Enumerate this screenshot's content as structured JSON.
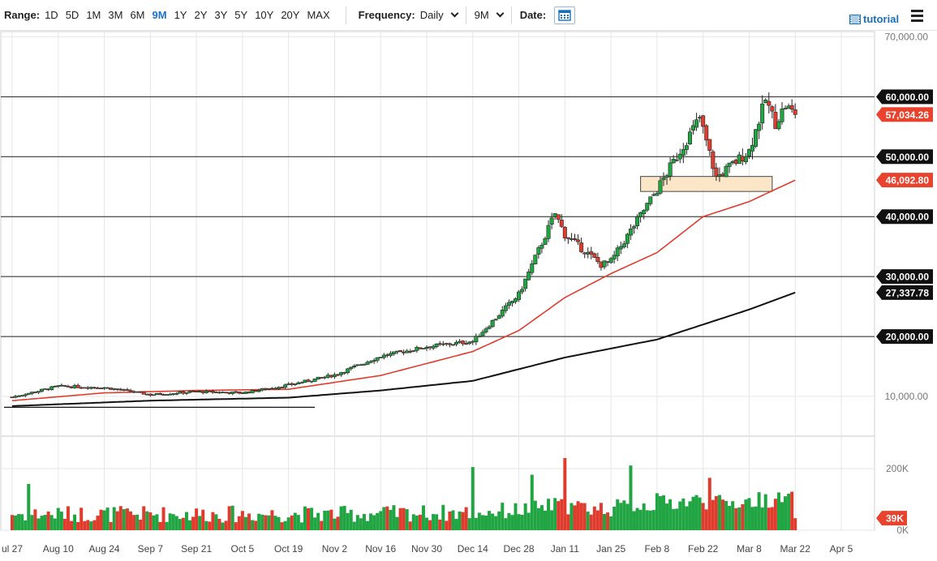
{
  "toolbar": {
    "range_label": "Range:",
    "ranges": [
      "1D",
      "5D",
      "1M",
      "3M",
      "6M",
      "9M",
      "1Y",
      "2Y",
      "3Y",
      "5Y",
      "10Y",
      "20Y",
      "MAX"
    ],
    "active_range": "9M",
    "frequency_label": "Frequency:",
    "frequency_value": "Daily",
    "period_value": "9M",
    "date_label": "Date:",
    "tutorial_label": "tutorial"
  },
  "colors": {
    "up": "#21a442",
    "down": "#e03c2e",
    "ma50": "#e03c2e",
    "ma200": "#111111",
    "tag_dark": "#111111",
    "tag_red": "#e8432f",
    "zone_fill": "#fbe7c8",
    "zone_stroke": "#444444"
  },
  "chart_data": {
    "type": "candlestick",
    "title": "",
    "y_axis": {
      "ticks": [
        "70,000.00",
        "60,000.00",
        "50,000.00",
        "40,000.00",
        "30,000.00",
        "20,000.00",
        "10,000.00"
      ],
      "values": [
        70000,
        60000,
        50000,
        40000,
        30000,
        20000,
        10000
      ],
      "ylim": [
        5000,
        71000
      ]
    },
    "x_axis": {
      "ticks": [
        "Jul 27",
        "Aug 10",
        "Aug 24",
        "Sep 7",
        "Sep 21",
        "Oct 5",
        "Oct 19",
        "Nov 2",
        "Nov 16",
        "Nov 30",
        "Dec 14",
        "Dec 28",
        "Jan 11",
        "Jan 25",
        "Feb 8",
        "Feb 22",
        "Mar 8",
        "Mar 22",
        "Apr 5"
      ],
      "tick_label_shown_first": "ul 27"
    },
    "horizontal_levels": [
      60000,
      50000,
      40000,
      30000,
      20000
    ],
    "price_tags": [
      {
        "label": "60,000.00",
        "value": 60000,
        "style": "dark"
      },
      {
        "label": "57,034.26",
        "value": 57034.26,
        "style": "red"
      },
      {
        "label": "50,000.00",
        "value": 50000,
        "style": "dark"
      },
      {
        "label": "46,092.80",
        "value": 46092.8,
        "style": "red"
      },
      {
        "label": "40,000.00",
        "value": 40000,
        "style": "dark"
      },
      {
        "label": "30,000.00",
        "value": 30000,
        "style": "dark"
      },
      {
        "label": "27,337.78",
        "value": 27337.78,
        "style": "dark"
      },
      {
        "label": "20,000.00",
        "value": 20000,
        "style": "dark"
      }
    ],
    "support_zone": {
      "from_date": "Feb 3",
      "to_date": "Mar 15",
      "low": 44200,
      "high": 46700
    },
    "trendline": {
      "from_date": "Jul 27",
      "to_date": "Oct 27",
      "value": 8200
    },
    "price_anchors": [
      [
        "Jul 27",
        9900
      ],
      [
        "Aug 10",
        11700
      ],
      [
        "Aug 24",
        11500
      ],
      [
        "Sep 7",
        10300
      ],
      [
        "Sep 21",
        10800
      ],
      [
        "Oct 5",
        10600
      ],
      [
        "Oct 19",
        11900
      ],
      [
        "Nov 2",
        13600
      ],
      [
        "Nov 16",
        16700
      ],
      [
        "Nov 30",
        18300
      ],
      [
        "Dec 14",
        19200
      ],
      [
        "Dec 28",
        27000
      ],
      [
        "Jan 8",
        40500
      ],
      [
        "Jan 11",
        37000
      ],
      [
        "Jan 22",
        32000
      ],
      [
        "Jan 25",
        32500
      ],
      [
        "Feb 8",
        44500
      ],
      [
        "Feb 21",
        56500
      ],
      [
        "Feb 26",
        46500
      ],
      [
        "Mar 8",
        51000
      ],
      [
        "Mar 13",
        59500
      ],
      [
        "Mar 16",
        55600
      ],
      [
        "Mar 19",
        58500
      ],
      [
        "Mar 22",
        57034.26
      ]
    ],
    "ma50_anchors": [
      [
        "Jul 27",
        9300
      ],
      [
        "Aug 24",
        10600
      ],
      [
        "Sep 21",
        11000
      ],
      [
        "Oct 19",
        11200
      ],
      [
        "Nov 16",
        13500
      ],
      [
        "Dec 14",
        17500
      ],
      [
        "Dec 28",
        21000
      ],
      [
        "Jan 11",
        26500
      ],
      [
        "Jan 25",
        30500
      ],
      [
        "Feb 8",
        34000
      ],
      [
        "Feb 22",
        40000
      ],
      [
        "Mar 8",
        42500
      ],
      [
        "Mar 22",
        46092.8
      ]
    ],
    "ma200_anchors": [
      [
        "Jul 27",
        8400
      ],
      [
        "Sep 7",
        9300
      ],
      [
        "Oct 19",
        9800
      ],
      [
        "Nov 16",
        11000
      ],
      [
        "Dec 14",
        12600
      ],
      [
        "Jan 11",
        16500
      ],
      [
        "Feb 8",
        19500
      ],
      [
        "Feb 22",
        22000
      ],
      [
        "Mar 8",
        24500
      ],
      [
        "Mar 22",
        27337.78
      ]
    ],
    "volume": {
      "y_ticks": [
        "200K",
        "0K"
      ],
      "y_values": [
        200000,
        0
      ],
      "last_label": "39K",
      "last_value": 39000,
      "spikes": [
        [
          "Jan 11",
          234000
        ],
        [
          "Jan 1",
          180000
        ],
        [
          "Dec 14",
          205000
        ],
        [
          "Jan 31",
          210000
        ],
        [
          "Feb 8",
          120000
        ],
        [
          "Feb 24",
          170000
        ],
        [
          "Aug 1",
          150000
        ]
      ]
    }
  }
}
